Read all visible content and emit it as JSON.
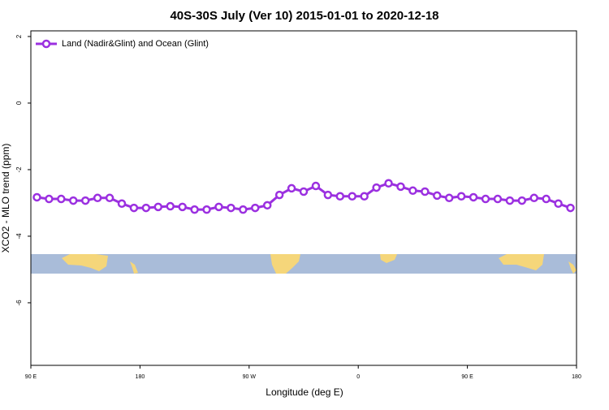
{
  "chart_data": {
    "type": "line",
    "title": "40S-30S July (Ver 10)   2015-01-01 to 2020-12-18",
    "x_label": "Longitude (deg E)",
    "y_label": "XCO2 - MLO trend (ppm)",
    "x": [
      95,
      105,
      115,
      125,
      135,
      145,
      155,
      165,
      175,
      185,
      195,
      205,
      215,
      225,
      235,
      245,
      255,
      265,
      275,
      285,
      295,
      305,
      315,
      325,
      335,
      345,
      355,
      365,
      375,
      385,
      395,
      405,
      415,
      425,
      435,
      445,
      455,
      465,
      475,
      485,
      495,
      505,
      515,
      525,
      535
    ],
    "series": [
      {
        "name": "Land (Nadir&Glint) and Ocean (Glint)",
        "color": "#9b30e0",
        "values": [
          -2.83,
          -2.88,
          -2.88,
          -2.93,
          -2.93,
          -2.85,
          -2.85,
          -3.02,
          -3.15,
          -3.15,
          -3.12,
          -3.1,
          -3.12,
          -3.2,
          -3.2,
          -3.12,
          -3.15,
          -3.2,
          -3.15,
          -3.07,
          -2.76,
          -2.56,
          -2.66,
          -2.49,
          -2.76,
          -2.8,
          -2.8,
          -2.8,
          -2.54,
          -2.41,
          -2.51,
          -2.63,
          -2.66,
          -2.78,
          -2.85,
          -2.8,
          -2.83,
          -2.88,
          -2.88,
          -2.93,
          -2.93,
          -2.85,
          -2.88,
          -3.02,
          -3.15
        ]
      }
    ],
    "xlim": [
      90,
      540
    ],
    "xticks": [
      {
        "value": 90,
        "label": "90 E"
      },
      {
        "value": 180,
        "label": "180"
      },
      {
        "value": 270,
        "label": "90 W"
      },
      {
        "value": 360,
        "label": "0"
      },
      {
        "value": 450,
        "label": "90 E"
      },
      {
        "value": 540,
        "label": "180"
      }
    ],
    "ylim": [
      -7.88,
      2.17
    ],
    "yticks": [
      2,
      0,
      -2,
      -4,
      -6
    ],
    "legend": "top-left"
  }
}
